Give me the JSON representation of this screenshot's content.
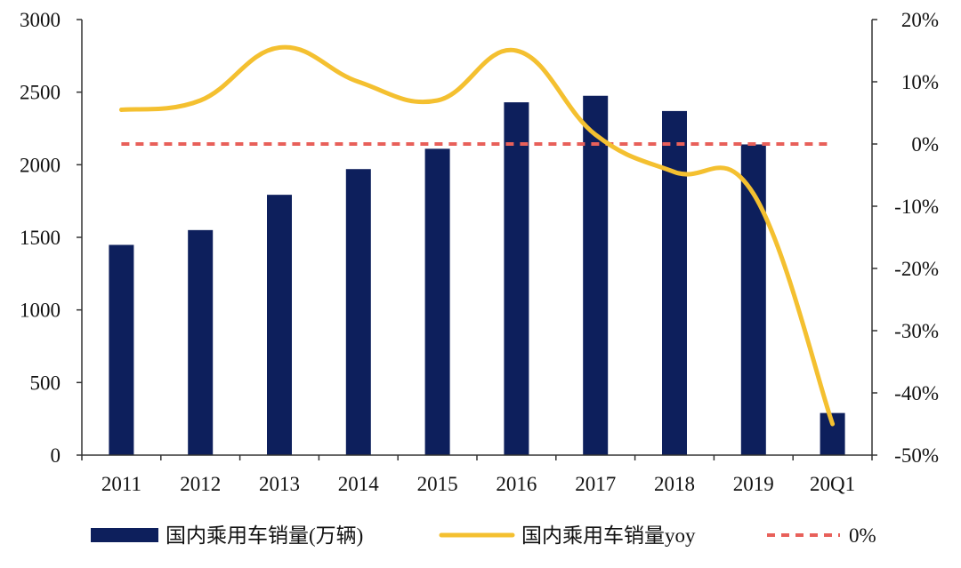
{
  "chart_data": {
    "type": "bar+line",
    "categories": [
      "2011",
      "2012",
      "2013",
      "2014",
      "2015",
      "2016",
      "2017",
      "2018",
      "2019",
      "20Q1"
    ],
    "series": [
      {
        "name": "国内乘用车销量(万辆)",
        "type": "bar",
        "axis": "left",
        "color": "#0d1f5c",
        "values": [
          1448,
          1550,
          1793,
          1970,
          2110,
          2430,
          2475,
          2370,
          2140,
          290
        ]
      },
      {
        "name": "国内乘用车销量yoy",
        "type": "line",
        "axis": "right",
        "color": "#f4c030",
        "values": [
          5.5,
          7,
          15.5,
          10,
          7,
          15,
          1.5,
          -4.5,
          -8,
          -45
        ]
      },
      {
        "name": "0%",
        "type": "reference-line",
        "axis": "right",
        "style": "dashed",
        "color": "#e8605a",
        "value": 0
      }
    ],
    "y_left": {
      "ylim": [
        0,
        3000
      ],
      "ticks": [
        0,
        500,
        1000,
        1500,
        2000,
        2500,
        3000
      ]
    },
    "y_right": {
      "ylim": [
        -50,
        20
      ],
      "ticks": [
        20,
        10,
        0,
        -10,
        -20,
        -30,
        -40,
        -50
      ],
      "tick_labels": [
        "20%",
        "10%",
        "0%",
        "-10%",
        "-20%",
        "-30%",
        "-40%",
        "-50%"
      ]
    },
    "legend": {
      "placement": "bottom"
    },
    "grid": false
  }
}
